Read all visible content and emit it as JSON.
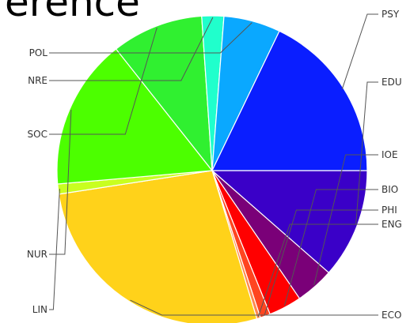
{
  "title_fragment": "erence",
  "chart_data": {
    "type": "pie",
    "title": "",
    "legend": "none",
    "slices": [
      {
        "label": "EDU",
        "value": 12.0,
        "color": "#3a00c8"
      },
      {
        "label": "IOE",
        "value": 4.2,
        "color": "#7a0078"
      },
      {
        "label": "BIO",
        "value": 3.6,
        "color": "#ff0000"
      },
      {
        "label": "PHI",
        "value": 1.1,
        "color": "#ff4520"
      },
      {
        "label": "ENG",
        "value": 0.4,
        "color": "#ff8a50"
      },
      {
        "label": "ECO",
        "value": 28.5,
        "color": "#ffd21a"
      },
      {
        "label": "LIN",
        "value": 1.1,
        "color": "#c8ff20"
      },
      {
        "label": "NUR",
        "value": 16.5,
        "color": "#4cff00"
      },
      {
        "label": "SOC",
        "value": 10.0,
        "color": "#30f030"
      },
      {
        "label": "NRE",
        "value": 2.4,
        "color": "#20ffcc"
      },
      {
        "label": "POL",
        "value": 6.2,
        "color": "#0aa8ff"
      },
      {
        "label": "PSY",
        "value": 18.7,
        "color": "#0a1eff"
      }
    ]
  }
}
